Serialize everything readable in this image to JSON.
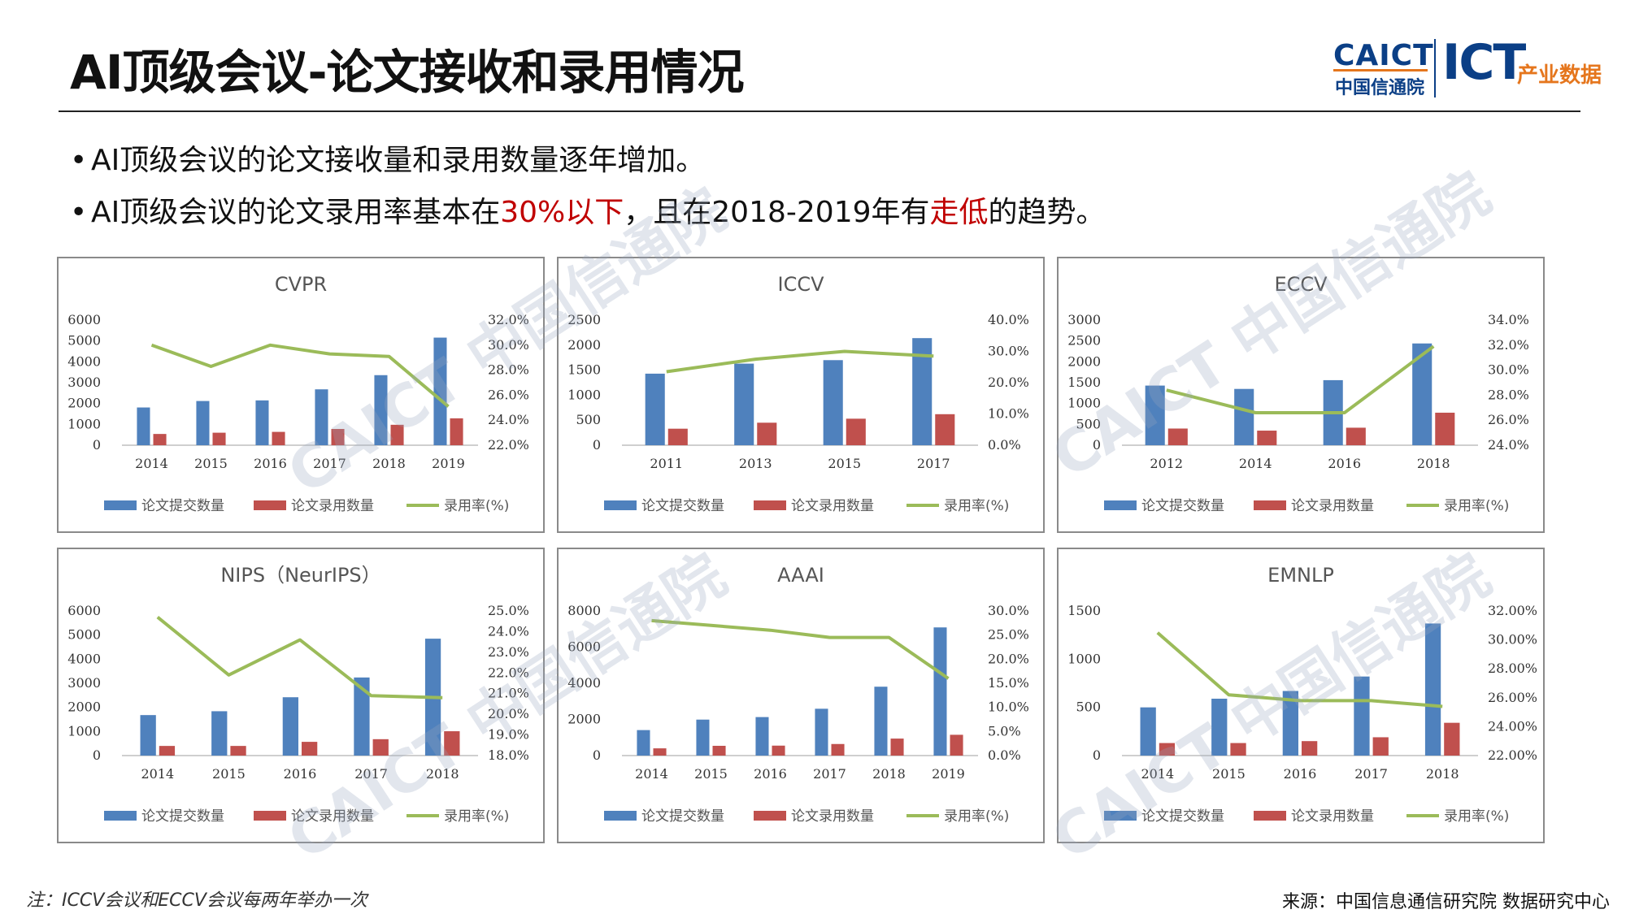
{
  "header": {
    "title": "AI顶级会议-论文接收和录用情况",
    "logo": {
      "org_en": "CAICT",
      "org_cn": "中国信通院",
      "brand_en": "ICT",
      "brand_cn": "产业数据"
    }
  },
  "bullets": [
    {
      "parts": [
        {
          "text": "AI顶级会议的论文接收量和录用数量逐年增加。",
          "red": false
        }
      ]
    },
    {
      "parts": [
        {
          "text": "AI顶级会议的论文录用率基本在",
          "red": false
        },
        {
          "text": "30%以下",
          "red": true
        },
        {
          "text": "，且在2018-2019年有",
          "red": false
        },
        {
          "text": "走低",
          "red": true
        },
        {
          "text": "的趋势。",
          "red": false
        }
      ]
    }
  ],
  "legend": {
    "submitted": "论文提交数量",
    "accepted": "论文录用数量",
    "rate": "录用率(%)"
  },
  "colors": {
    "submitted": "#4f81bd",
    "accepted": "#c0504d",
    "rate": "#9bbb59"
  },
  "watermark": "CAICT 中国信通院",
  "footer": {
    "note": "注：ICCV会议和ECCV会议每两年举办一次",
    "source": "来源：中国信息通信研究院 数据研究中心"
  },
  "chart_data": [
    {
      "type": "bar",
      "title": "CVPR",
      "categories": [
        "2014",
        "2015",
        "2016",
        "2017",
        "2018",
        "2019"
      ],
      "series": [
        {
          "name": "论文提交数量",
          "values": [
            1810,
            2120,
            2150,
            2680,
            3360,
            5160
          ]
        },
        {
          "name": "论文录用数量",
          "values": [
            540,
            600,
            640,
            780,
            980,
            1290
          ]
        },
        {
          "name": "录用率(%)",
          "type": "line",
          "axis": "right",
          "values": [
            30.0,
            28.3,
            30.0,
            29.3,
            29.1,
            25.1
          ]
        }
      ],
      "yTicks": [
        "0",
        "1000",
        "2000",
        "3000",
        "4000",
        "5000",
        "6000"
      ],
      "y2Ticks": [
        "22.0%",
        "24.0%",
        "26.0%",
        "28.0%",
        "30.0%",
        "32.0%"
      ],
      "ylim": [
        0,
        6000
      ],
      "y2lim": [
        22,
        32
      ],
      "legend_position": "bottom"
    },
    {
      "type": "bar",
      "title": "ICCV",
      "categories": [
        "2011",
        "2013",
        "2015",
        "2017"
      ],
      "series": [
        {
          "name": "论文提交数量",
          "values": [
            1430,
            1630,
            1700,
            2140
          ]
        },
        {
          "name": "论文录用数量",
          "values": [
            330,
            450,
            530,
            620
          ]
        },
        {
          "name": "录用率(%)",
          "type": "line",
          "axis": "right",
          "values": [
            23.5,
            27.5,
            30.0,
            28.5
          ]
        }
      ],
      "yTicks": [
        "0",
        "500",
        "1000",
        "1500",
        "2000",
        "2500"
      ],
      "y2Ticks": [
        "0.0%",
        "10.0%",
        "20.0%",
        "30.0%",
        "40.0%"
      ],
      "ylim": [
        0,
        2500
      ],
      "y2lim": [
        0,
        40
      ],
      "legend_position": "bottom"
    },
    {
      "type": "bar",
      "title": "ECCV",
      "categories": [
        "2012",
        "2014",
        "2016",
        "2018"
      ],
      "series": [
        {
          "name": "论文提交数量",
          "values": [
            1430,
            1350,
            1560,
            2440
          ]
        },
        {
          "name": "论文录用数量",
          "values": [
            400,
            350,
            420,
            780
          ]
        },
        {
          "name": "录用率(%)",
          "type": "line",
          "axis": "right",
          "values": [
            28.4,
            26.6,
            26.6,
            31.9
          ]
        }
      ],
      "yTicks": [
        "0",
        "500",
        "1000",
        "1500",
        "2000",
        "2500",
        "3000"
      ],
      "y2Ticks": [
        "24.0%",
        "26.0%",
        "28.0%",
        "30.0%",
        "32.0%",
        "34.0%"
      ],
      "ylim": [
        0,
        3000
      ],
      "y2lim": [
        24,
        34
      ],
      "legend_position": "bottom"
    },
    {
      "type": "bar",
      "title": "NIPS（NeurIPS）",
      "categories": [
        "2014",
        "2015",
        "2016",
        "2017",
        "2018"
      ],
      "series": [
        {
          "name": "论文提交数量",
          "values": [
            1680,
            1840,
            2420,
            3240,
            4850
          ]
        },
        {
          "name": "论文录用数量",
          "values": [
            400,
            400,
            570,
            680,
            1010
          ]
        },
        {
          "name": "录用率(%)",
          "type": "line",
          "axis": "right",
          "values": [
            24.7,
            21.9,
            23.6,
            20.9,
            20.8
          ]
        }
      ],
      "yTicks": [
        "0",
        "1000",
        "2000",
        "3000",
        "4000",
        "5000",
        "6000"
      ],
      "y2Ticks": [
        "18.0%",
        "19.0%",
        "20.0%",
        "21.0%",
        "22.0%",
        "23.0%",
        "24.0%",
        "25.0%"
      ],
      "ylim": [
        0,
        6000
      ],
      "y2lim": [
        18,
        25
      ],
      "legend_position": "bottom"
    },
    {
      "type": "bar",
      "title": "AAAI",
      "categories": [
        "2014",
        "2015",
        "2016",
        "2017",
        "2018",
        "2019"
      ],
      "series": [
        {
          "name": "论文提交数量",
          "values": [
            1410,
            1990,
            2130,
            2590,
            3810,
            7090
          ]
        },
        {
          "name": "论文录用数量",
          "values": [
            400,
            540,
            550,
            640,
            940,
            1150
          ]
        },
        {
          "name": "录用率(%)",
          "type": "line",
          "axis": "right",
          "values": [
            28.0,
            27.0,
            26.0,
            24.5,
            24.5,
            16.0
          ]
        }
      ],
      "yTicks": [
        "0",
        "2000",
        "4000",
        "6000",
        "8000"
      ],
      "y2Ticks": [
        "0.0%",
        "5.0%",
        "10.0%",
        "15.0%",
        "20.0%",
        "25.0%",
        "30.0%"
      ],
      "ylim": [
        0,
        8000
      ],
      "y2lim": [
        0,
        30
      ],
      "legend_position": "bottom"
    },
    {
      "type": "bar",
      "title": "EMNLP",
      "categories": [
        "2014",
        "2015",
        "2016",
        "2017",
        "2018"
      ],
      "series": [
        {
          "name": "论文提交数量",
          "values": [
            500,
            590,
            670,
            820,
            1370
          ]
        },
        {
          "name": "论文录用数量",
          "values": [
            130,
            130,
            150,
            190,
            340
          ]
        },
        {
          "name": "录用率(%)",
          "type": "line",
          "axis": "right",
          "values": [
            30.5,
            26.2,
            25.8,
            25.8,
            25.4
          ]
        }
      ],
      "yTicks": [
        "0",
        "500",
        "1000",
        "1500"
      ],
      "y2Ticks": [
        "22.00%",
        "24.00%",
        "26.00%",
        "28.00%",
        "30.00%",
        "32.00%"
      ],
      "ylim": [
        0,
        1500
      ],
      "y2lim": [
        22,
        32
      ],
      "legend_position": "bottom"
    }
  ]
}
